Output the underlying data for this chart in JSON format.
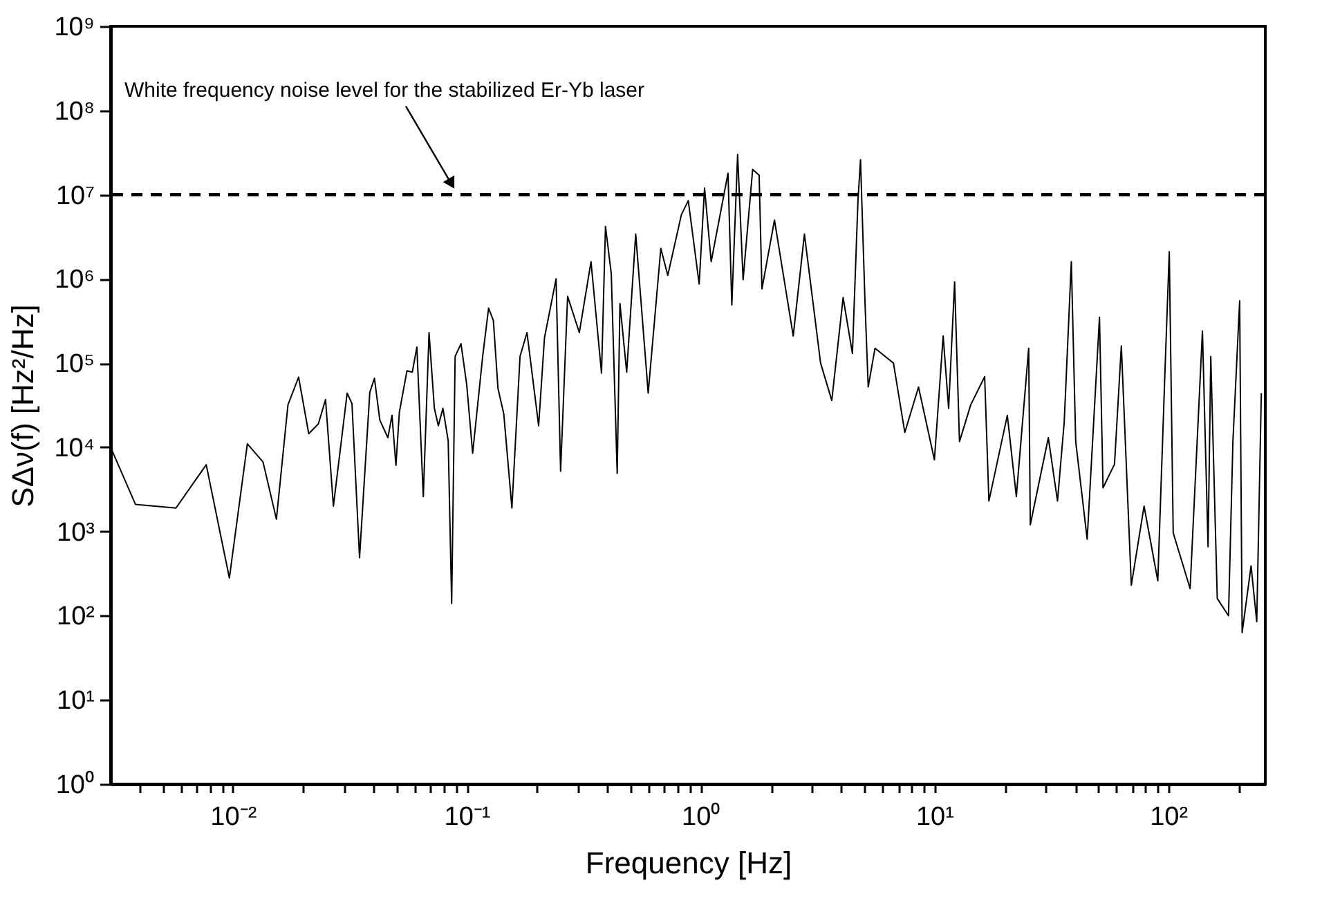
{
  "chart_data": {
    "type": "line",
    "xlabel": "Frequency [Hz]",
    "ylabel": "SΔν(f) [Hz²/Hz]",
    "log": "xy",
    "grid": false,
    "line_style": "solid",
    "marker": "none",
    "xlim": [
      0.003,
      260
    ],
    "ylim": [
      1,
      1000000000
    ],
    "xticks": [
      {
        "value": 0.004,
        "label": null
      },
      {
        "value": 0.005,
        "label": null
      },
      {
        "value": 0.006,
        "label": null
      },
      {
        "value": 0.007,
        "label": null
      },
      {
        "value": 0.008,
        "label": null
      },
      {
        "value": 0.009,
        "label": null
      },
      {
        "value": 0.01,
        "label": "10⁻²"
      },
      {
        "value": 0.02,
        "label": null
      },
      {
        "value": 0.03,
        "label": null
      },
      {
        "value": 0.04,
        "label": null
      },
      {
        "value": 0.05,
        "label": null
      },
      {
        "value": 0.06,
        "label": null
      },
      {
        "value": 0.07,
        "label": null
      },
      {
        "value": 0.08,
        "label": null
      },
      {
        "value": 0.09,
        "label": null
      },
      {
        "value": 0.1,
        "label": "10⁻¹"
      },
      {
        "value": 0.2,
        "label": null
      },
      {
        "value": 0.3,
        "label": null
      },
      {
        "value": 0.4,
        "label": null
      },
      {
        "value": 0.5,
        "label": null
      },
      {
        "value": 0.6,
        "label": null
      },
      {
        "value": 0.7,
        "label": null
      },
      {
        "value": 0.8,
        "label": null
      },
      {
        "value": 0.9,
        "label": null
      },
      {
        "value": 1,
        "label": "10⁰"
      },
      {
        "value": 2,
        "label": null
      },
      {
        "value": 3,
        "label": null
      },
      {
        "value": 4,
        "label": null
      },
      {
        "value": 5,
        "label": null
      },
      {
        "value": 6,
        "label": null
      },
      {
        "value": 7,
        "label": null
      },
      {
        "value": 8,
        "label": null
      },
      {
        "value": 9,
        "label": null
      },
      {
        "value": 10,
        "label": "10¹"
      },
      {
        "value": 20,
        "label": null
      },
      {
        "value": 30,
        "label": null
      },
      {
        "value": 40,
        "label": null
      },
      {
        "value": 50,
        "label": null
      },
      {
        "value": 60,
        "label": null
      },
      {
        "value": 70,
        "label": null
      },
      {
        "value": 80,
        "label": null
      },
      {
        "value": 90,
        "label": null
      },
      {
        "value": 100,
        "label": "10²"
      },
      {
        "value": 200,
        "label": null
      }
    ],
    "yticks": [
      {
        "value": 1,
        "label": "10⁰"
      },
      {
        "value": 10,
        "label": "10¹"
      },
      {
        "value": 100,
        "label": "10²"
      },
      {
        "value": 1000,
        "label": "10³"
      },
      {
        "value": 10000,
        "label": "10⁴"
      },
      {
        "value": 100000,
        "label": "10⁵"
      },
      {
        "value": 1000000,
        "label": "10⁶"
      },
      {
        "value": 10000000,
        "label": "10⁷"
      },
      {
        "value": 100000000,
        "label": "10⁸"
      },
      {
        "value": 1000000000,
        "label": "10⁹"
      }
    ],
    "ref_lines": [
      {
        "axis": "y",
        "value": 10000000,
        "color": "#000000",
        "line_style": "dashed"
      }
    ],
    "annotations": [
      "White frequency noise level for the stabilized Er-Yb laser"
    ],
    "series": [
      {
        "color": "#000000",
        "x": [
          0.003,
          0.00383,
          0.00571,
          0.00769,
          0.00966,
          0.01153,
          0.01345,
          0.01535,
          0.0172,
          0.0191,
          0.0211,
          0.0232,
          0.0249,
          0.0269,
          0.0308,
          0.0323,
          0.0348,
          0.0385,
          0.0403,
          0.0425,
          0.046,
          0.0479,
          0.0498,
          0.0515,
          0.0555,
          0.0585,
          0.0612,
          0.0652,
          0.069,
          0.0727,
          0.0756,
          0.0791,
          0.0833,
          0.0862,
          0.0892,
          0.0945,
          0.1,
          0.106,
          0.117,
          0.124,
          0.13,
          0.136,
          0.144,
          0.156,
          0.169,
          0.181,
          0.203,
          0.215,
          0.241,
          0.252,
          0.27,
          0.303,
          0.34,
          0.377,
          0.392,
          0.415,
          0.44,
          0.452,
          0.483,
          0.528,
          0.597,
          0.676,
          0.724,
          0.828,
          0.886,
          0.986,
          1.04,
          1.11,
          1.31,
          1.36,
          1.44,
          1.52,
          1.67,
          1.78,
          1.83,
          2.07,
          2.49,
          2.78,
          3.26,
          3.64,
          4.07,
          4.46,
          4.71,
          4.83,
          5.05,
          5.21,
          5.57,
          6.68,
          7.47,
          8.55,
          10.0,
          10.9,
          11.5,
          12.2,
          12.8,
          14.3,
          16.4,
          17.1,
          20.5,
          22.4,
          25.3,
          25.7,
          30.7,
          33.6,
          35.9,
          38.5,
          40.2,
          45.0,
          50.8,
          52.6,
          58.9,
          63.0,
          69.5,
          78.8,
          90.2,
          96.5,
          101,
          105,
          124,
          140,
          148,
          152,
          162,
          181,
          189,
          202,
          207,
          226,
          239,
          250
        ],
        "values": [
          10000,
          2100,
          1900,
          6200,
          280,
          11000,
          6700,
          1400,
          32000,
          68000,
          14500,
          19000,
          37000,
          2000,
          44000,
          33000,
          490,
          45000,
          66000,
          21000,
          13000,
          24000,
          6100,
          26000,
          81000,
          78000,
          155000,
          2600,
          230000,
          29000,
          18000,
          29000,
          12000,
          140,
          120000,
          170000,
          55000,
          8500,
          120000,
          450000,
          320000,
          50000,
          25000,
          1900,
          120000,
          230000,
          18000,
          200000,
          1000000,
          5200,
          620000,
          230000,
          1600000,
          76000,
          4200000,
          1150000,
          4900,
          510000,
          78000,
          3400000,
          44000,
          2300000,
          1100000,
          5800000,
          8500000,
          870000,
          12000000,
          1600000,
          18000000,
          490000,
          30000000,
          980000,
          20000000,
          17000000,
          760000,
          5000000,
          210000,
          3400000,
          100000,
          36000,
          600000,
          130000,
          8500000,
          26000000,
          510000,
          52000,
          150000,
          100000,
          15000,
          52000,
          7100,
          210000,
          29000,
          920000,
          11700,
          32000,
          69000,
          2300,
          24000,
          2600,
          150000,
          1200,
          13000,
          2300,
          20000,
          1600000,
          11700,
          810,
          350000,
          3300,
          6300,
          160000,
          230,
          2000,
          260,
          62000,
          2100000,
          960,
          210,
          240000,
          660,
          120000,
          160,
          100,
          11700,
          550000,
          63,
          390,
          85,
          44000
        ]
      }
    ]
  }
}
